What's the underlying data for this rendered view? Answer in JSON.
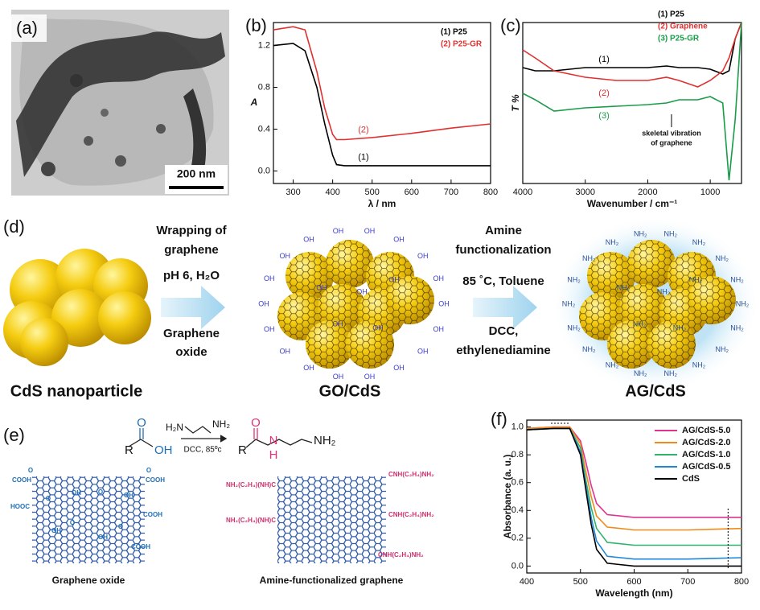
{
  "panel_a": {
    "label": "(a)",
    "scale_bar": "200 nm"
  },
  "chart_data": [
    {
      "type": "line",
      "label": "(b)",
      "xlabel": "λ / nm",
      "ylabel": "A",
      "xlim": [
        250,
        800
      ],
      "xticks": [
        300,
        400,
        500,
        600,
        700,
        800
      ],
      "ylim": [
        -0.12,
        1.42
      ],
      "yticks": [
        {
          "value": 0,
          "label": "0.0"
        },
        0.4,
        0.8,
        1.2
      ],
      "legend": "top-right",
      "series": [
        {
          "name": "(1) P25",
          "tag": "(1)",
          "color": "#000000",
          "x": [
            250,
            300,
            330,
            360,
            380,
            400,
            410,
            430,
            500,
            600,
            700,
            800
          ],
          "values": [
            1.2,
            1.22,
            1.15,
            0.8,
            0.45,
            0.15,
            0.06,
            0.05,
            0.05,
            0.05,
            0.05,
            0.05
          ]
        },
        {
          "name": "(2) P25-GR",
          "tag": "(2)",
          "color": "#e03030",
          "x": [
            250,
            300,
            330,
            360,
            380,
            400,
            410,
            430,
            500,
            600,
            700,
            800
          ],
          "values": [
            1.35,
            1.38,
            1.35,
            0.95,
            0.6,
            0.35,
            0.3,
            0.3,
            0.32,
            0.36,
            0.41,
            0.45
          ]
        }
      ]
    },
    {
      "type": "line",
      "label": "(c)",
      "xlabel": "Wavenumber / cm⁻¹",
      "ylabel": "T %",
      "xlim": [
        4000,
        500
      ],
      "xticks": [
        4000,
        3000,
        2000,
        1000
      ],
      "ylim": [
        0,
        1
      ],
      "legend": "top-right",
      "annotation": [
        "skeletal vibration",
        "of graphene"
      ],
      "series": [
        {
          "name": "(1) P25",
          "tag": "(1)",
          "color": "#000000",
          "x": [
            4000,
            3800,
            3500,
            3000,
            2500,
            2000,
            1700,
            1500,
            1200,
            1000,
            800,
            700,
            600,
            500
          ],
          "values": [
            0.72,
            0.7,
            0.7,
            0.72,
            0.72,
            0.72,
            0.73,
            0.72,
            0.72,
            0.71,
            0.68,
            0.7,
            0.9,
            1.0
          ]
        },
        {
          "name": "(2) Graphene",
          "tag": "(2)",
          "color": "#e03030",
          "x": [
            4000,
            3800,
            3500,
            3000,
            2500,
            2000,
            1700,
            1500,
            1200,
            1000,
            800,
            700,
            600,
            500
          ],
          "values": [
            0.83,
            0.78,
            0.7,
            0.66,
            0.64,
            0.64,
            0.66,
            0.64,
            0.6,
            0.64,
            0.7,
            0.78,
            0.9,
            1.0
          ]
        },
        {
          "name": "(3) P25-GR",
          "tag": "(3)",
          "color": "#1a9c4a",
          "x": [
            4000,
            3800,
            3500,
            3000,
            2500,
            2000,
            1700,
            1500,
            1200,
            1000,
            800,
            700,
            600,
            500
          ],
          "values": [
            0.56,
            0.52,
            0.45,
            0.47,
            0.48,
            0.49,
            0.5,
            0.52,
            0.52,
            0.54,
            0.5,
            0.02,
            0.4,
            1.0
          ]
        }
      ]
    },
    {
      "type": "line",
      "label": "(f)",
      "xlabel": "Wavelength (nm)",
      "ylabel": "Absorbance (a. u.)",
      "xlim": [
        400,
        800
      ],
      "xticks": [
        400,
        500,
        600,
        700,
        800
      ],
      "ylim": [
        -0.05,
        1.05
      ],
      "yticks": [
        {
          "value": 0,
          "label": "0.0"
        },
        0.2,
        0.4,
        0.6,
        0.8,
        {
          "value": 1,
          "label": "1.0"
        }
      ],
      "legend": "top-right",
      "legend_lines": true,
      "series": [
        {
          "name": "AG/CdS-5.0",
          "color": "#e0338f",
          "x": [
            400,
            450,
            480,
            500,
            510,
            520,
            530,
            550,
            600,
            700,
            800
          ],
          "values": [
            0.99,
            1.0,
            1.0,
            0.9,
            0.75,
            0.58,
            0.45,
            0.37,
            0.35,
            0.35,
            0.35
          ]
        },
        {
          "name": "AG/CdS-2.0",
          "color": "#f08a1c",
          "x": [
            400,
            450,
            480,
            500,
            510,
            520,
            530,
            550,
            600,
            700,
            800
          ],
          "values": [
            0.99,
            1.0,
            1.0,
            0.88,
            0.68,
            0.5,
            0.36,
            0.28,
            0.26,
            0.26,
            0.27
          ]
        },
        {
          "name": "AG/CdS-1.0",
          "color": "#2fb36a",
          "x": [
            400,
            450,
            480,
            500,
            510,
            520,
            530,
            550,
            600,
            700,
            800
          ],
          "values": [
            0.98,
            0.99,
            0.99,
            0.85,
            0.62,
            0.42,
            0.27,
            0.17,
            0.15,
            0.15,
            0.15
          ]
        },
        {
          "name": "AG/CdS-0.5",
          "color": "#1e88d8",
          "x": [
            400,
            450,
            480,
            500,
            510,
            520,
            530,
            550,
            600,
            700,
            800
          ],
          "values": [
            0.98,
            0.99,
            0.99,
            0.82,
            0.58,
            0.35,
            0.18,
            0.07,
            0.05,
            0.05,
            0.06
          ]
        },
        {
          "name": "CdS",
          "color": "#000000",
          "x": [
            400,
            450,
            480,
            500,
            510,
            520,
            530,
            550,
            600,
            700,
            800
          ],
          "values": [
            0.98,
            0.99,
            0.99,
            0.8,
            0.55,
            0.3,
            0.12,
            0.02,
            0,
            0,
            0
          ]
        }
      ]
    }
  ],
  "panel_d": {
    "label": "(d)",
    "step1": {
      "above": [
        "Wrapping of",
        "graphene"
      ],
      "condition": "pH 6, H₂O",
      "below": [
        "Graphene",
        "oxide"
      ]
    },
    "step2": {
      "above": [
        "Amine",
        "functionalization"
      ],
      "condition": "85 ˚C, Toluene",
      "below": [
        "DCC,",
        "ethylenediamine"
      ]
    },
    "products": [
      "CdS nanoparticle",
      "GO/CdS",
      "AG/CdS"
    ],
    "go_group": "OH",
    "ag_group": "NH₂"
  },
  "panel_e": {
    "label": "(e)",
    "reactant": {
      "r": "R",
      "o": "O",
      "oh": "OH"
    },
    "amine": {
      "left": "H₂N",
      "right": "NH₂"
    },
    "conditions": "DCC, 85ºc",
    "product": {
      "r": "R",
      "o": "O",
      "n": "N",
      "h": "H",
      "nh2": "NH₂"
    },
    "go_groups": {
      "cooh": "COOH",
      "hooc": "HOOC",
      "o": "O",
      "oh": "OH"
    },
    "ag_groups": {
      "left": "NH₂(C₂H₄)(NH)C",
      "right": "CNH(C₂H₄)NH₂"
    },
    "captions": [
      "Graphene oxide",
      "Amine-functionalized graphene"
    ]
  }
}
